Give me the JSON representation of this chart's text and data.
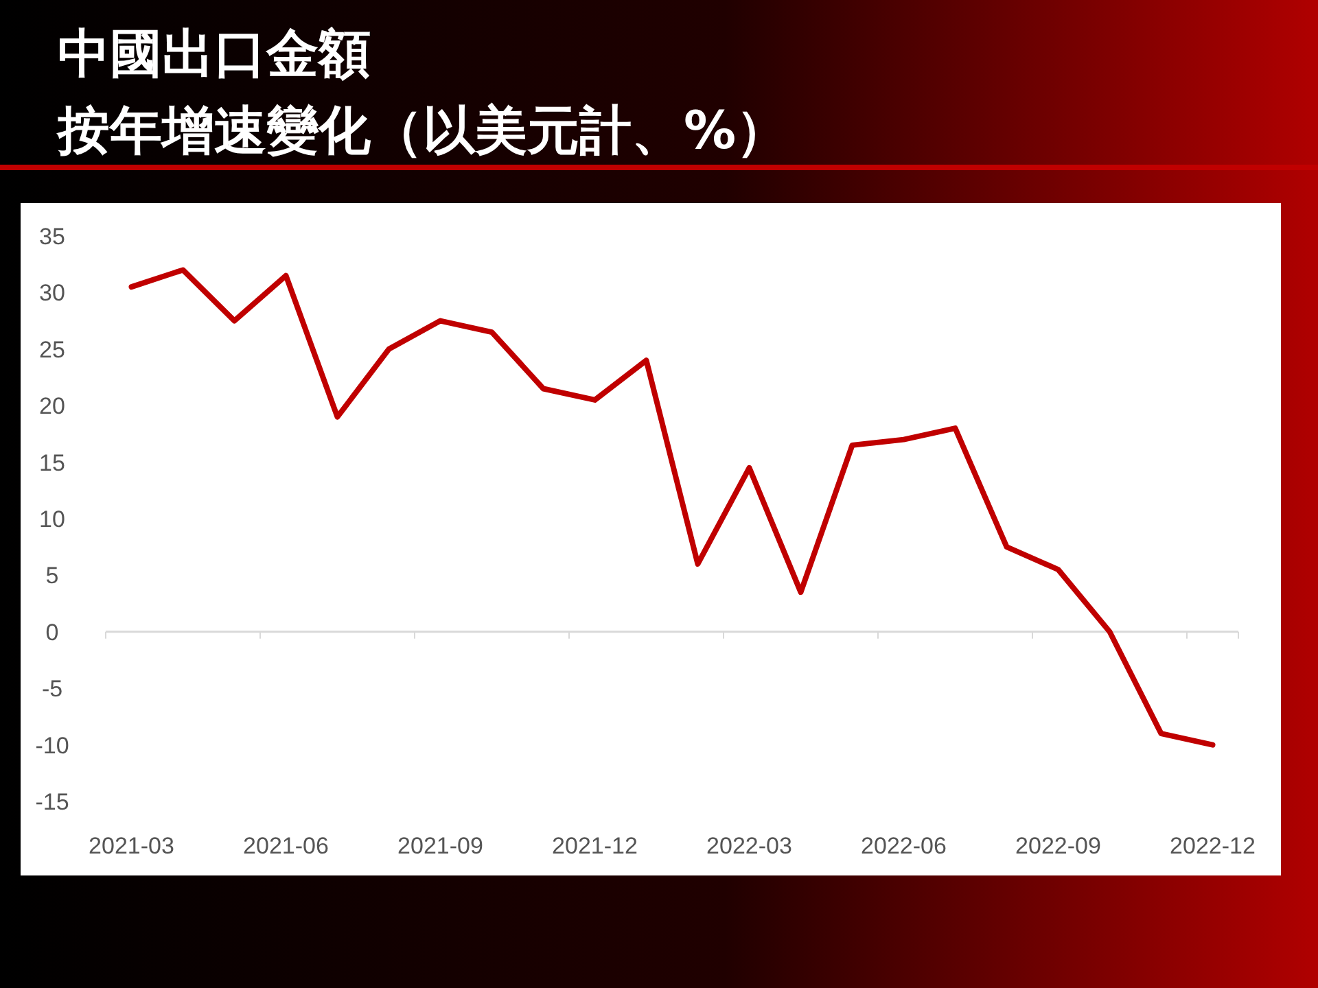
{
  "chart_data": {
    "type": "line",
    "title": "中國出口金額",
    "subtitle": "按年增速變化（以美元計、%）",
    "categories": [
      "2021-03",
      null,
      null,
      "2021-06",
      null,
      null,
      "2021-09",
      null,
      null,
      "2021-12",
      null,
      null,
      "2022-03",
      null,
      null,
      "2022-06",
      null,
      null,
      "2022-09",
      null,
      null,
      "2022-12"
    ],
    "series": [
      {
        "color": "#c00000",
        "values": [
          30.5,
          32,
          27.5,
          31.5,
          19,
          25,
          27.5,
          26.5,
          21.5,
          20.5,
          24,
          6,
          14.5,
          3.5,
          16.5,
          17,
          18,
          7.5,
          5.5,
          0,
          -9,
          -10
        ]
      }
    ],
    "ylim": [
      -15,
      35
    ],
    "yticks": [
      -15,
      -10,
      -5,
      0,
      5,
      10,
      15,
      20,
      25,
      30,
      35
    ],
    "ref_lines": [
      {
        "axis": "y",
        "value": 0,
        "color": "#d9d9d9"
      }
    ],
    "marker": "none",
    "line_style": "solid"
  }
}
